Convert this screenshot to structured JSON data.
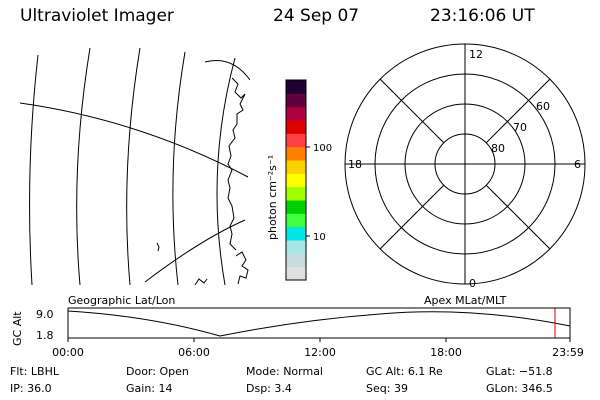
{
  "header": {
    "instrument": "Ultraviolet Imager",
    "date": "24 Sep 07",
    "time": "23:16:06 UT"
  },
  "colorbar": {
    "unit_label": "photon cm⁻²s⁻¹",
    "ticks": [
      "100",
      "10"
    ],
    "colors": [
      "#e0e0e0",
      "#c8dcdc",
      "#a8e6e6",
      "#00e5e5",
      "#40ff40",
      "#00d000",
      "#a0ff00",
      "#ffff00",
      "#ffd000",
      "#ff8000",
      "#ff4040",
      "#e00000",
      "#b00040",
      "#600040",
      "#200030"
    ]
  },
  "polar_plot": {
    "mlt_labels": {
      "top": "12",
      "right": "6",
      "bottom": "0",
      "left": "18"
    },
    "lat_labels": [
      "60",
      "70",
      "80"
    ]
  },
  "timeline": {
    "left_label": "Geographic Lat/Lon",
    "right_label": "Apex MLat/MLT",
    "axis_title": "GC Alt",
    "y_ticks": [
      "9.0",
      "1.8"
    ],
    "x_ticks": [
      "00:00",
      "06:00",
      "12:00",
      "18:00",
      "23:59"
    ],
    "marker_color": "#cc0000"
  },
  "status": {
    "row1": [
      {
        "label": "Flt:",
        "value": "LBHL"
      },
      {
        "label": "Door:",
        "value": "Open"
      },
      {
        "label": "Mode:",
        "value": "Normal"
      },
      {
        "label": "GC Alt:",
        "value": "6.1 Re"
      },
      {
        "label": "GLat:",
        "value": "−51.8"
      }
    ],
    "row2": [
      {
        "label": "IP:",
        "value": "36.0"
      },
      {
        "label": "Gain:",
        "value": "14"
      },
      {
        "label": "Dsp:",
        "value": "3.4"
      },
      {
        "label": "Seq:",
        "value": "39"
      },
      {
        "label": "GLon:",
        "value": "346.5"
      }
    ]
  }
}
